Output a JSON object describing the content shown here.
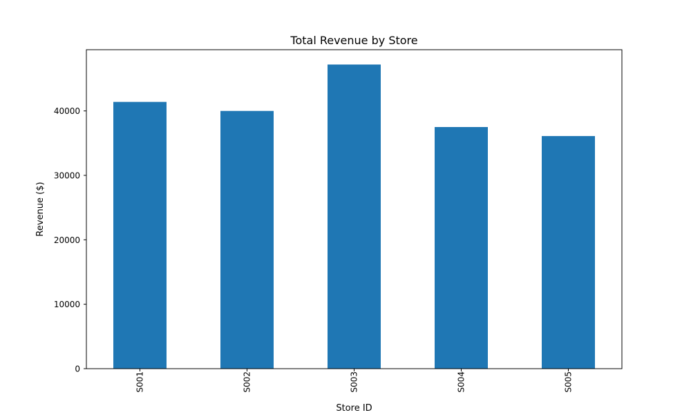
{
  "chart_data": {
    "type": "bar",
    "title": "Total Revenue by Store",
    "xlabel": "Store ID",
    "ylabel": "Revenue ($)",
    "categories": [
      "S001",
      "S002",
      "S003",
      "S004",
      "S005"
    ],
    "values": [
      41400,
      40000,
      47200,
      37500,
      36100
    ],
    "ylim": [
      0,
      49500
    ],
    "yticks": [
      0,
      10000,
      20000,
      30000,
      40000
    ],
    "colors": {
      "bar": "#1f77b4",
      "axis": "#000000",
      "background": "#ffffff"
    },
    "grid": false,
    "legend": "none"
  }
}
